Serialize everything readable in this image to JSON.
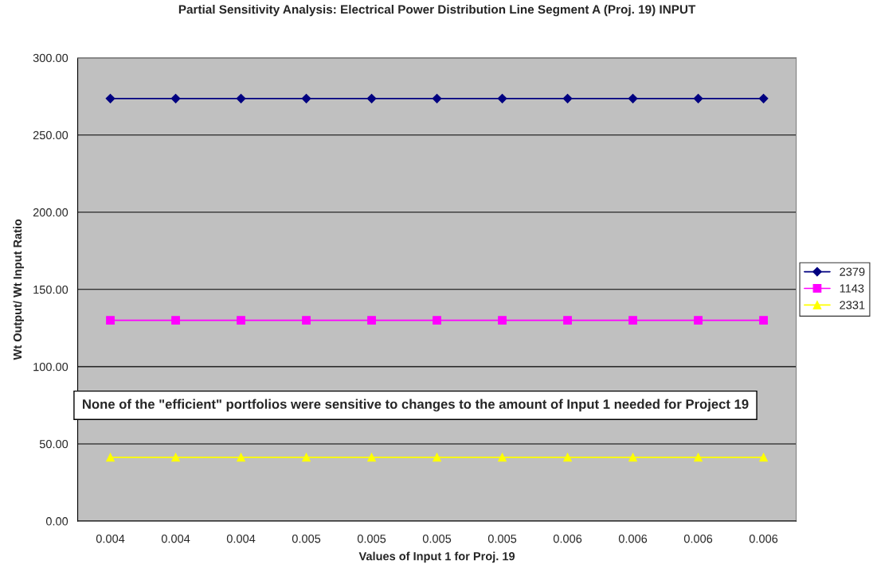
{
  "chart_data": {
    "type": "line",
    "title": "Partial Sensitivity Analysis: Electrical Power Distribution Line Segment A (Proj. 19) INPUT",
    "xlabel": "Values of Input 1 for Proj. 19",
    "ylabel": "Wt Output/ Wt Input Ratio",
    "categories": [
      "0.004",
      "0.004",
      "0.004",
      "0.005",
      "0.005",
      "0.005",
      "0.005",
      "0.006",
      "0.006",
      "0.006",
      "0.006"
    ],
    "series": [
      {
        "name": "2379",
        "color": "#000080",
        "marker": "diamond",
        "values": [
          273.6,
          273.6,
          273.6,
          273.6,
          273.6,
          273.6,
          273.6,
          273.6,
          273.6,
          273.6,
          273.6
        ]
      },
      {
        "name": "1143",
        "color": "#ff00ff",
        "marker": "square",
        "values": [
          130,
          130,
          130,
          130,
          130,
          130,
          130,
          130,
          130,
          130,
          130
        ]
      },
      {
        "name": "2331",
        "color": "#ffff00",
        "marker": "triangle",
        "values": [
          41.3,
          41.3,
          41.3,
          41.3,
          41.3,
          41.3,
          41.3,
          41.3,
          41.3,
          41.3,
          41.3
        ]
      }
    ],
    "ylim": [
      0,
      300
    ],
    "yticks": [
      {
        "value": 0,
        "label": "0.00"
      },
      {
        "value": 50,
        "label": "50.00"
      },
      {
        "value": 100,
        "label": "100.00"
      },
      {
        "value": 150,
        "label": "150.00"
      },
      {
        "value": 200,
        "label": "200.00"
      },
      {
        "value": 250,
        "label": "250.00"
      },
      {
        "value": 300,
        "label": "300.00"
      }
    ],
    "grid": "y",
    "legend": "right",
    "annotations": [
      "None of the \"efficient\" portfolios were sensitive to changes to the amount of Input 1 needed for Project 19"
    ]
  }
}
